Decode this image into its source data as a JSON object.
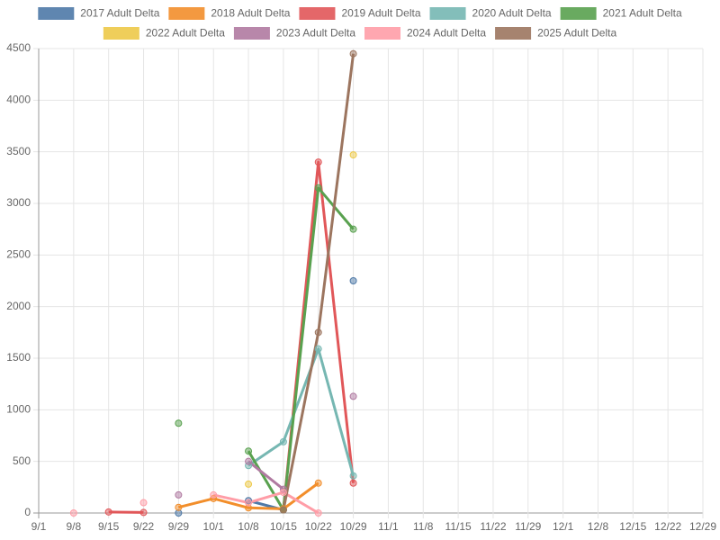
{
  "chart_data": {
    "type": "line",
    "categories": [
      "9/1",
      "9/8",
      "9/15",
      "9/22",
      "9/29",
      "10/1",
      "10/8",
      "10/15",
      "10/22",
      "10/29",
      "11/1",
      "11/8",
      "11/15",
      "11/22",
      "11/29",
      "12/1",
      "12/8",
      "12/15",
      "12/22",
      "12/29"
    ],
    "ylim": [
      0,
      4500
    ],
    "yticks": [
      0,
      500,
      1000,
      1500,
      2000,
      2500,
      3000,
      3500,
      4000,
      4500
    ],
    "grid": true,
    "legend": "top",
    "series": [
      {
        "name": "2017 Adult Delta",
        "color": "#4e79a7",
        "values": [
          null,
          null,
          null,
          null,
          0,
          null,
          120,
          30,
          null,
          2250,
          null,
          null,
          null,
          null,
          null,
          null,
          null,
          null,
          null,
          null
        ]
      },
      {
        "name": "2018 Adult Delta",
        "color": "#f28e2b",
        "values": [
          null,
          null,
          null,
          null,
          55,
          140,
          50,
          40,
          290,
          null,
          null,
          null,
          null,
          null,
          null,
          null,
          null,
          null,
          null,
          null
        ]
      },
      {
        "name": "2019 Adult Delta",
        "color": "#e15759",
        "values": [
          null,
          null,
          10,
          5,
          null,
          null,
          null,
          30,
          3400,
          290,
          null,
          null,
          null,
          null,
          null,
          null,
          null,
          null,
          null,
          null
        ]
      },
      {
        "name": "2020 Adult Delta",
        "color": "#76b7b2",
        "values": [
          null,
          null,
          null,
          null,
          null,
          null,
          460,
          690,
          1590,
          360,
          null,
          null,
          null,
          null,
          null,
          null,
          null,
          null,
          null,
          null
        ]
      },
      {
        "name": "2021 Adult Delta",
        "color": "#59a14f",
        "values": [
          null,
          null,
          null,
          null,
          870,
          null,
          600,
          30,
          3150,
          2750,
          null,
          null,
          null,
          null,
          null,
          null,
          null,
          null,
          null,
          null
        ]
      },
      {
        "name": "2022 Adult Delta",
        "color": "#edc948",
        "values": [
          null,
          null,
          null,
          null,
          null,
          null,
          280,
          null,
          null,
          3470,
          null,
          null,
          null,
          null,
          null,
          null,
          null,
          null,
          null,
          null
        ]
      },
      {
        "name": "2023 Adult Delta",
        "color": "#b07aa1",
        "values": [
          null,
          null,
          null,
          null,
          175,
          null,
          500,
          230,
          null,
          1130,
          null,
          null,
          null,
          null,
          null,
          null,
          null,
          null,
          null,
          null
        ]
      },
      {
        "name": "2024 Adult Delta",
        "color": "#ff9da7",
        "values": [
          null,
          0,
          null,
          100,
          null,
          175,
          100,
          200,
          0,
          null,
          null,
          null,
          null,
          null,
          null,
          null,
          null,
          null,
          null,
          null
        ]
      },
      {
        "name": "2025 Adult Delta",
        "color": "#9c755f",
        "values": [
          null,
          null,
          null,
          null,
          null,
          null,
          null,
          30,
          1750,
          4450,
          null,
          null,
          null,
          null,
          null,
          null,
          null,
          null,
          null,
          null
        ]
      }
    ]
  }
}
